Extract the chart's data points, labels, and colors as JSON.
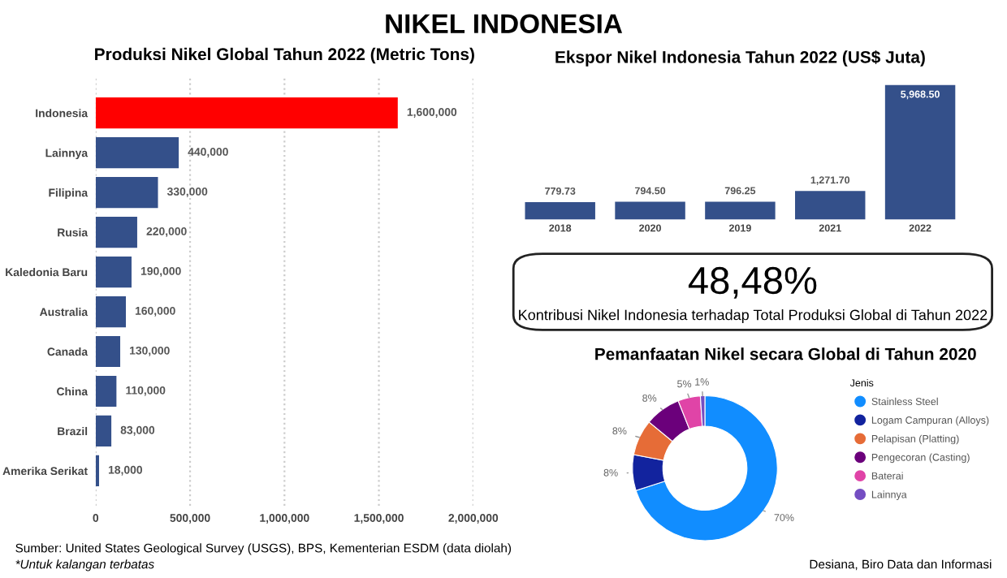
{
  "chart_data": [
    {
      "type": "other",
      "title": "NIKEL INDONESIA",
      "annotations": [
        "Sumber: United States Geological Survey (USGS), BPS, Kementerian ESDM (data diolah)",
        "*Untuk kalangan terbatas",
        "Desiana, Biro Data dan Informasi"
      ]
    },
    {
      "type": "bar",
      "orientation": "horizontal",
      "title": "Produksi Nikel Global Tahun 2022 (Metric Tons)",
      "categories": [
        "Indonesia",
        "Lainnya",
        "Filipina",
        "Rusia",
        "Kaledonia Baru",
        "Australia",
        "Canada",
        "China",
        "Brazil",
        "Amerika Serikat"
      ],
      "values": [
        1600000,
        440000,
        330000,
        220000,
        190000,
        160000,
        130000,
        110000,
        83000,
        18000
      ],
      "colors": [
        "#ff0000",
        "#34508a",
        "#34508a",
        "#34508a",
        "#34508a",
        "#34508a",
        "#34508a",
        "#34508a",
        "#34508a",
        "#34508a"
      ],
      "value_labels": [
        "1,600,000",
        "440,000",
        "330,000",
        "220,000",
        "190,000",
        "160,000",
        "130,000",
        "110,000",
        "83,000",
        "18,000"
      ],
      "xlim": [
        0,
        2000000
      ],
      "xticks": [
        0,
        {
          "value": 500000,
          "label": "500,000"
        },
        {
          "value": 1000000,
          "label": "1,000,000"
        },
        {
          "value": 1500000,
          "label": "1,500,000"
        },
        {
          "value": 2000000,
          "label": "2,000,000"
        }
      ],
      "grid": "x",
      "legend": false
    },
    {
      "type": "bar",
      "title": "Ekspor Nikel Indonesia Tahun 2022 (US$ Juta)",
      "categories": [
        "2018",
        "2020",
        "2019",
        "2021",
        "2022"
      ],
      "values": [
        779.73,
        794.5,
        796.25,
        1271.7,
        5968.5
      ],
      "color": "#34508a",
      "value_labels": [
        "779.73",
        "794.50",
        "796.25",
        "1,271.70",
        "5,968.50"
      ],
      "legend": false
    },
    {
      "type": "other",
      "title": "48,48%",
      "subtitle": "Kontribusi Nikel Indonesia terhadap Total Produksi Global di Tahun 2022"
    },
    {
      "type": "donut",
      "title": "Pemanfaatan Nikel secara Global di Tahun 2020",
      "legend_title": "Jenis",
      "categories": [
        "Stainless Steel",
        "Logam Campuran (Alloys)",
        "Pelapisan (Platting)",
        "Pengecoran (Casting)",
        "Baterai",
        "Lainnya"
      ],
      "values": [
        70,
        8,
        8,
        8,
        5,
        1
      ],
      "colors": [
        "#118dff",
        "#12239e",
        "#e66c37",
        "#6b007b",
        "#e044a7",
        "#744ec2"
      ],
      "value_labels": [
        "70%",
        "8%",
        "8%",
        "8%",
        "5%",
        "1%"
      ],
      "legend": "right"
    }
  ]
}
